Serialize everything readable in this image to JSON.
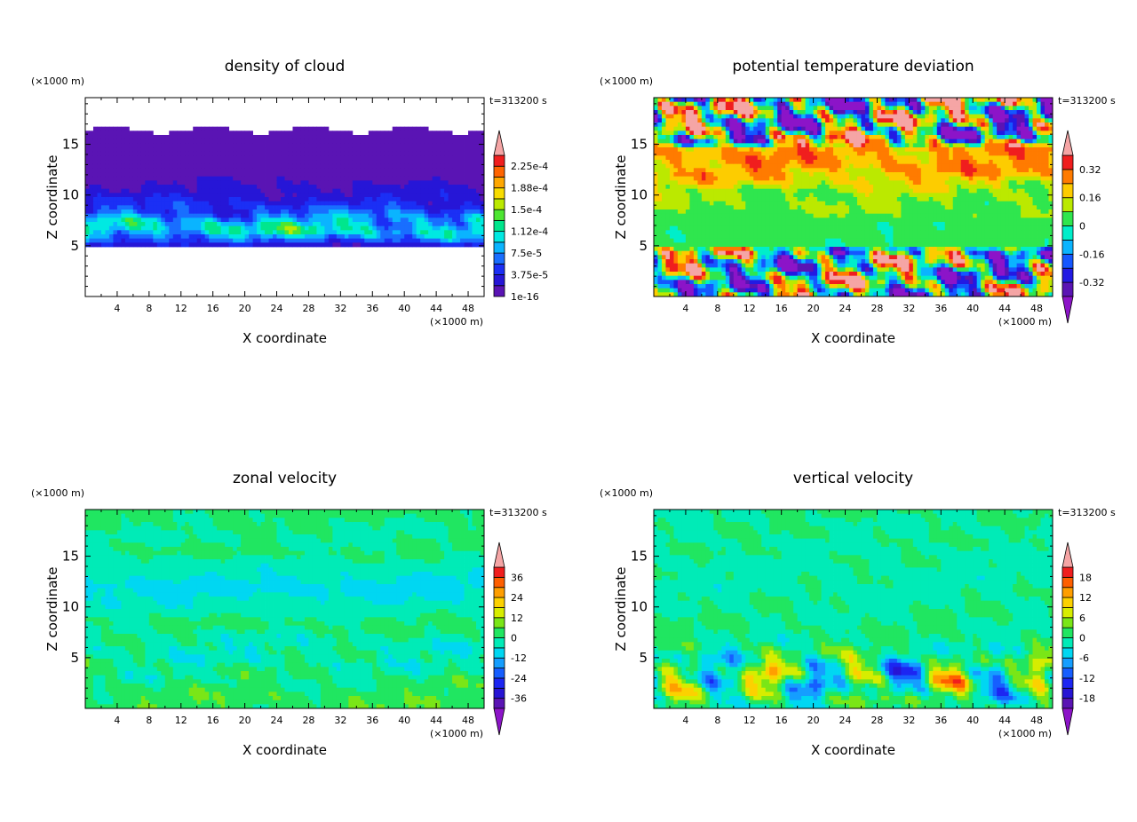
{
  "chart_data": [
    {
      "type": "heatmap",
      "title": "density of cloud",
      "xlabel": "X coordinate",
      "ylabel": "Z coordinate",
      "x_unit": "(×1000 m)",
      "y_unit": "(×1000 m)",
      "time_label": "t=313200 s",
      "xlim": [
        0,
        50
      ],
      "ylim": [
        0,
        19.6
      ],
      "xticks": [
        "4",
        "8",
        "12",
        "16",
        "20",
        "24",
        "28",
        "32",
        "36",
        "40",
        "44",
        "48"
      ],
      "yticks": [
        "5",
        "10",
        "15"
      ],
      "levels": [
        1e-16,
        1.875e-05,
        3.75e-05,
        5.625e-05,
        7.5e-05,
        9.375e-05,
        0.0001125,
        0.00013125,
        0.00015,
        0.00016875,
        0.0001875,
        0.00020625,
        0.000225,
        0.00024375
      ],
      "colorbar_labels": [
        "1e-16",
        "3.75e-5",
        "7.5e-5",
        "1.12e-4",
        "1.5e-4",
        "1.88e-4",
        "2.25e-4"
      ],
      "colorbar_label_levels": [
        0,
        2,
        4,
        6,
        8,
        10,
        12
      ],
      "over_arrow": true,
      "under_arrow": false,
      "valid_z_range": [
        4.8,
        16.4
      ],
      "profile_z": [
        4.8,
        5.5,
        6.5,
        7.5,
        8.5,
        10,
        12,
        16.4
      ],
      "profile_mean": [
        1.2e-05,
        6e-05,
        0.000105,
        9e-05,
        5e-05,
        2.8e-05,
        1e-05,
        4e-06
      ],
      "profile_noise": [
        5e-06,
        3e-05,
        5e-05,
        5e-05,
        3e-05,
        1.5e-05,
        8e-06,
        3e-06
      ]
    },
    {
      "type": "heatmap",
      "title": "potential temperature deviation",
      "xlabel": "X coordinate",
      "ylabel": "Z coordinate",
      "x_unit": "(×1000 m)",
      "y_unit": "(×1000 m)",
      "time_label": "t=313200 s",
      "xlim": [
        0,
        50
      ],
      "ylim": [
        0,
        19.6
      ],
      "xticks": [
        "4",
        "8",
        "12",
        "16",
        "20",
        "24",
        "28",
        "32",
        "36",
        "40",
        "44",
        "48"
      ],
      "yticks": [
        "5",
        "10",
        "15"
      ],
      "levels": [
        -0.4,
        -0.32,
        -0.24,
        -0.16,
        -0.08,
        0,
        0.08,
        0.16,
        0.24,
        0.32,
        0.4
      ],
      "colorbar_labels": [
        "-0.32",
        "-0.16",
        "0",
        "0.16",
        "0.32"
      ],
      "colorbar_label_levels": [
        1,
        3,
        5,
        7,
        9
      ],
      "over_arrow": true,
      "under_arrow": true,
      "profile_z": [
        0,
        4.6,
        4.8,
        7,
        8,
        10.5,
        12,
        14.5,
        15.5,
        19.6
      ],
      "profile_mean": [
        0,
        0,
        0.02,
        0.02,
        0.06,
        0.1,
        0.22,
        0.25,
        0,
        0
      ],
      "profile_noise": [
        0.6,
        0.6,
        0.03,
        0.03,
        0.04,
        0.1,
        0.12,
        0.12,
        0.7,
        0.7
      ]
    },
    {
      "type": "heatmap",
      "title": "zonal velocity",
      "xlabel": "X coordinate",
      "ylabel": "Z coordinate",
      "x_unit": "(×1000 m)",
      "y_unit": "(×1000 m)",
      "time_label": "t=313200 s",
      "xlim": [
        0,
        50
      ],
      "ylim": [
        0,
        19.6
      ],
      "xticks": [
        "4",
        "8",
        "12",
        "16",
        "20",
        "24",
        "28",
        "32",
        "36",
        "40",
        "44",
        "48"
      ],
      "yticks": [
        "5",
        "10",
        "15"
      ],
      "levels": [
        -42,
        -36,
        -30,
        -24,
        -18,
        -12,
        -6,
        0,
        6,
        12,
        18,
        24,
        30,
        36,
        42
      ],
      "colorbar_labels": [
        "-36",
        "-24",
        "-12",
        "0",
        "12",
        "24",
        "36"
      ],
      "colorbar_label_levels": [
        1,
        3,
        5,
        7,
        9,
        11,
        13
      ],
      "over_arrow": true,
      "under_arrow": true,
      "profile_z": [
        0,
        1.5,
        3,
        6,
        8.5,
        10,
        12,
        14,
        15.5,
        17,
        19.6
      ],
      "profile_mean": [
        4,
        3,
        0,
        -3,
        1,
        -4,
        -8,
        -3,
        1,
        -1,
        2
      ],
      "profile_noise": [
        5,
        5,
        7,
        7,
        4,
        3,
        3,
        3,
        3,
        3,
        3
      ]
    },
    {
      "type": "heatmap",
      "title": "vertical velocity",
      "xlabel": "X coordinate",
      "ylabel": "Z coordinate",
      "x_unit": "(×1000 m)",
      "y_unit": "(×1000 m)",
      "time_label": "t=313200 s",
      "xlim": [
        0,
        50
      ],
      "ylim": [
        0,
        19.6
      ],
      "xticks": [
        "4",
        "8",
        "12",
        "16",
        "20",
        "24",
        "28",
        "32",
        "36",
        "40",
        "44",
        "48"
      ],
      "yticks": [
        "5",
        "10",
        "15"
      ],
      "levels": [
        -21,
        -18,
        -15,
        -12,
        -9,
        -6,
        -3,
        0,
        3,
        6,
        9,
        12,
        15,
        18,
        21
      ],
      "colorbar_labels": [
        "-18",
        "-12",
        "-6",
        "0",
        "6",
        "12",
        "18"
      ],
      "colorbar_label_levels": [
        1,
        3,
        5,
        7,
        9,
        11,
        13
      ],
      "over_arrow": true,
      "under_arrow": true,
      "profile_z": [
        0,
        1,
        3,
        5,
        7,
        9,
        12,
        19.6
      ],
      "profile_mean": [
        0,
        0,
        0,
        0,
        0,
        0,
        -1,
        0
      ],
      "profile_noise": [
        3,
        8,
        11,
        7,
        3,
        2,
        2,
        2
      ]
    }
  ]
}
